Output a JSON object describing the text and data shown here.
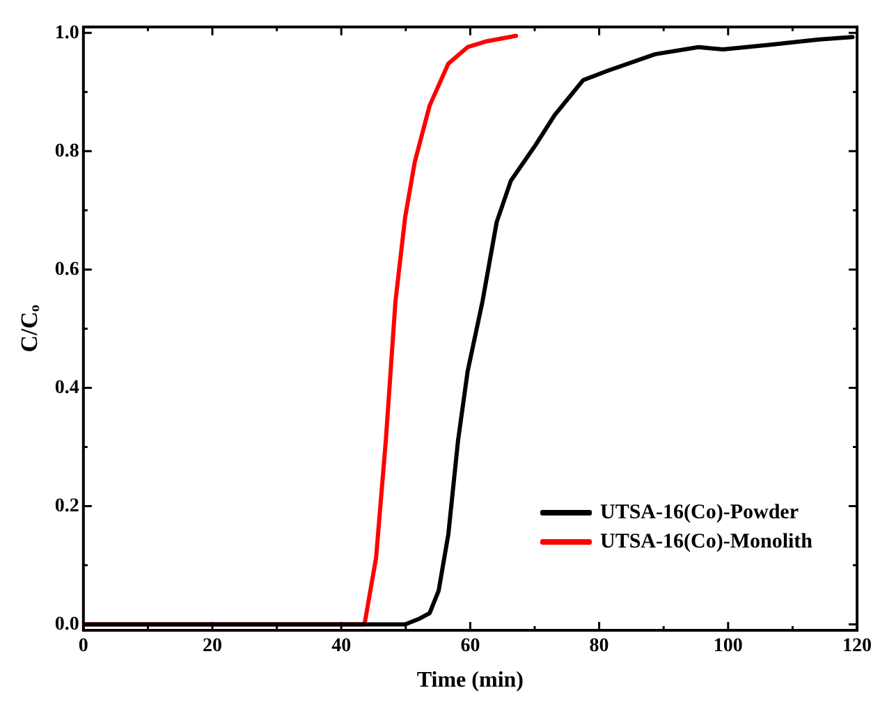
{
  "chart_data": {
    "type": "line",
    "xlabel": "Time (min)",
    "ylabel": "C/Cₒ",
    "xlim": [
      0,
      120
    ],
    "xticks": [
      0,
      20,
      40,
      60,
      80,
      100,
      120
    ],
    "ylim": [
      -0.01,
      1.01
    ],
    "yticks": [
      {
        "value": 0,
        "label": "0.0"
      },
      {
        "value": 0.2,
        "label": "0.2"
      },
      {
        "value": 0.4,
        "label": "0.4"
      },
      {
        "value": 0.6,
        "label": "0.6"
      },
      {
        "value": 0.8,
        "label": "0.8"
      },
      {
        "value": 1,
        "label": "1.0"
      }
    ],
    "grid": false,
    "legend": "bottom right",
    "marker": "none",
    "line_style": "solid",
    "series": [
      {
        "name": "UTSA-16(Co)-Powder",
        "color": "#000000",
        "x": [
          0,
          49.9,
          52.2,
          53.7,
          55.1,
          56.6,
          58.1,
          59.6,
          61.9,
          64.1,
          66.3,
          70.1,
          73.1,
          77.5,
          81.3,
          88.7,
          95.4,
          99.2,
          106.6,
          114.1,
          119.3
        ],
        "values": [
          0,
          0,
          0.01,
          0.019,
          0.057,
          0.152,
          0.31,
          0.428,
          0.546,
          0.68,
          0.75,
          0.81,
          0.861,
          0.92,
          0.936,
          0.964,
          0.976,
          0.972,
          0.98,
          0.989,
          0.993
        ]
      },
      {
        "name": "UTSA-16(Co)-Monolith",
        "color": "#ff0000",
        "x": [
          0,
          43.6,
          45.4,
          46.9,
          48.4,
          49.9,
          51.4,
          53.7,
          56.6,
          59.6,
          62.6,
          67.1
        ],
        "values": [
          0,
          0,
          0.113,
          0.31,
          0.546,
          0.688,
          0.782,
          0.877,
          0.948,
          0.976,
          0.986,
          0.995
        ]
      }
    ]
  }
}
